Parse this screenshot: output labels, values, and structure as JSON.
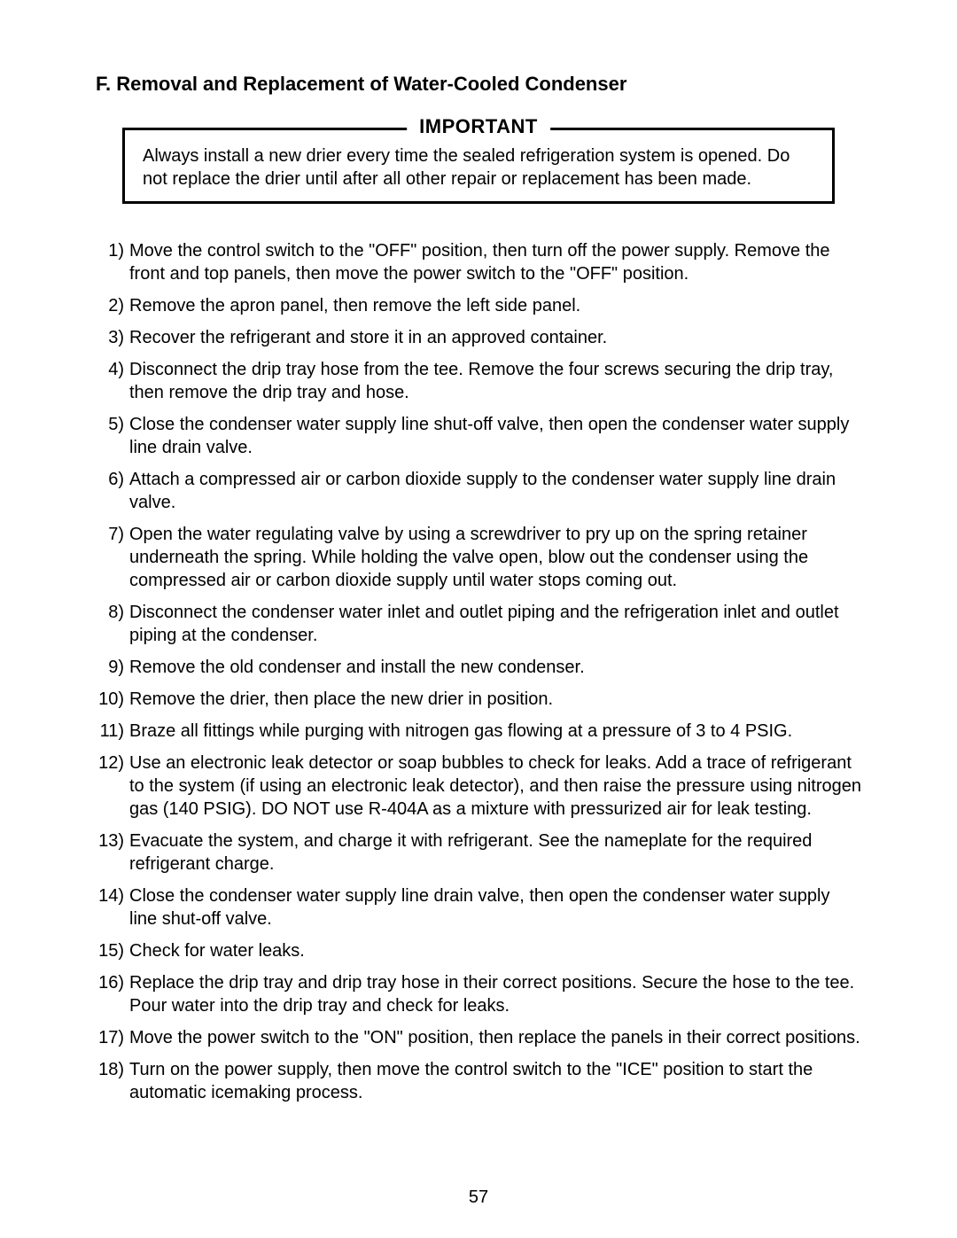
{
  "heading": "F. Removal and Replacement of Water-Cooled Condenser",
  "callout": {
    "title": "IMPORTANT",
    "body": "Always install a new drier every time the sealed refrigeration system is opened. Do not replace the drier until after all other repair or replacement has been made."
  },
  "steps": [
    {
      "num": "1)",
      "text": "Move the control switch to the \"OFF\" position, then turn off the power supply. Remove the front and top panels, then move the power switch to the \"OFF\" position."
    },
    {
      "num": "2)",
      "text": "Remove the apron panel, then remove the left side panel."
    },
    {
      "num": "3)",
      "text": "Recover the refrigerant and store it in an approved container."
    },
    {
      "num": "4)",
      "text": "Disconnect the drip tray hose from the tee. Remove the four screws securing the drip tray, then remove the drip tray and hose."
    },
    {
      "num": "5)",
      "text": "Close the condenser water supply line shut-off valve, then open the condenser water supply line drain valve."
    },
    {
      "num": "6)",
      "text": "Attach a compressed air or carbon dioxide supply to the condenser water supply line drain valve."
    },
    {
      "num": "7)",
      "text": "Open the water regulating valve by using a screwdriver to pry up on the spring retainer underneath the spring. While holding the valve open, blow out the condenser using the compressed air or carbon dioxide supply until water stops coming out."
    },
    {
      "num": "8)",
      "text": "Disconnect the condenser water inlet and outlet piping and the refrigeration inlet and outlet piping at the condenser."
    },
    {
      "num": "9)",
      "text": "Remove the old condenser and install the new condenser."
    },
    {
      "num": "10)",
      "text": "Remove the drier, then place the new drier in position."
    },
    {
      "num": "11)",
      "text": "Braze all fittings while purging with nitrogen gas flowing at a pressure of 3 to 4 PSIG."
    },
    {
      "num": "12)",
      "text": "Use an electronic leak detector or soap bubbles to check for leaks. Add a trace of refrigerant to the system (if using an electronic leak detector), and then raise the pressure using nitrogen gas (140 PSIG). DO NOT use R-404A as a mixture with pressurized air for leak testing."
    },
    {
      "num": "13)",
      "text": "Evacuate the system, and charge it with refrigerant. See the nameplate for the required refrigerant charge."
    },
    {
      "num": "14)",
      "text": "Close the condenser water supply line drain valve, then open the condenser water supply line shut-off valve."
    },
    {
      "num": "15)",
      "text": "Check for water leaks."
    },
    {
      "num": "16)",
      "text": "Replace the drip tray and drip tray hose in their correct positions. Secure the hose to the tee. Pour water into the drip tray and check for leaks."
    },
    {
      "num": "17)",
      "text": "Move the power switch to the \"ON\" position, then replace the panels in their correct positions."
    },
    {
      "num": "18)",
      "text": "Turn on the power supply, then move the control switch to the \"ICE\" position to start the automatic icemaking process."
    }
  ],
  "pageNumber": "57"
}
